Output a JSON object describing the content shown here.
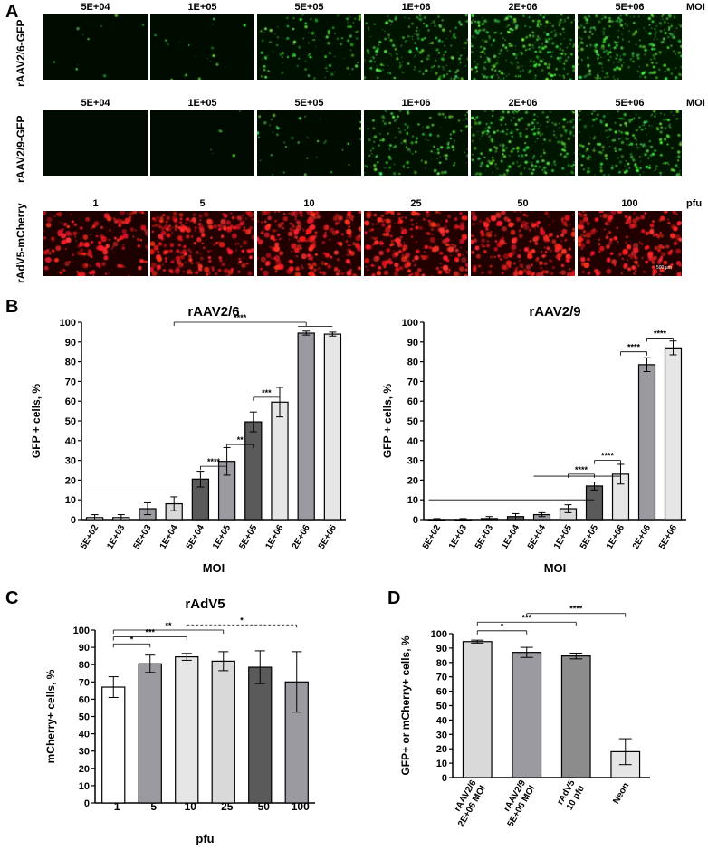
{
  "panels": {
    "A": "A",
    "B": "B",
    "C": "C",
    "D": "D"
  },
  "micrographs": {
    "rows": [
      {
        "label": "rAAV2/6-GFP",
        "unit": "MOI",
        "color": "#22cc22",
        "tiles": [
          {
            "label": "5E+04",
            "intensity": 0.03
          },
          {
            "label": "1E+05",
            "intensity": 0.06
          },
          {
            "label": "5E+05",
            "intensity": 0.35
          },
          {
            "label": "1E+06",
            "intensity": 0.6
          },
          {
            "label": "2E+06",
            "intensity": 0.9
          },
          {
            "label": "5E+06",
            "intensity": 0.85
          }
        ]
      },
      {
        "label": "rAAV2/9-GFP",
        "unit": "MOI",
        "color": "#22cc22",
        "tiles": [
          {
            "label": "5E+04",
            "intensity": 0.0
          },
          {
            "label": "1E+05",
            "intensity": 0.02
          },
          {
            "label": "5E+05",
            "intensity": 0.12
          },
          {
            "label": "1E+06",
            "intensity": 0.45
          },
          {
            "label": "2E+06",
            "intensity": 0.75
          },
          {
            "label": "5E+06",
            "intensity": 0.7
          }
        ]
      },
      {
        "label": "rAdV5-mCherry",
        "unit": "pfu",
        "color": "#ff1a1a",
        "tiles": [
          {
            "label": "1",
            "intensity": 0.6
          },
          {
            "label": "5",
            "intensity": 0.85
          },
          {
            "label": "10",
            "intensity": 0.8
          },
          {
            "label": "25",
            "intensity": 0.8
          },
          {
            "label": "50",
            "intensity": 0.75
          },
          {
            "label": "100",
            "intensity": 0.7
          }
        ]
      }
    ],
    "scale_bar": "500 µm"
  },
  "chart_data": [
    {
      "id": "B1",
      "type": "bar",
      "title": "rAAV2/6",
      "xlabel": "MOI",
      "ylabel": "GFP + cells, %",
      "ylim": [
        0,
        100
      ],
      "yticks": [
        0,
        10,
        20,
        30,
        40,
        50,
        60,
        70,
        80,
        90,
        100
      ],
      "categories": [
        "5E+02",
        "1E+03",
        "5E+03",
        "1E+04",
        "5E+04",
        "1E+05",
        "5E+05",
        "1E+06",
        "2E+06",
        "5E+06"
      ],
      "values": [
        1,
        1,
        5.5,
        8,
        20.5,
        29.5,
        49.5,
        59.5,
        94.5,
        94
      ],
      "errors": [
        1.5,
        1.5,
        3,
        3.5,
        4,
        7,
        5,
        7.5,
        1,
        1
      ],
      "fills": [
        "#ffffff",
        "#ffffff",
        "#9a9aa0",
        "#d9d9d9",
        "#5a5a5a",
        "#9a9aa0",
        "#5a5a5a",
        "#e6e6e6",
        "#9a9aa0",
        "#e6e6e6"
      ],
      "significance": [
        {
          "label": "****",
          "from": 4,
          "to": 5
        },
        {
          "label": "***",
          "from": 6,
          "to": 7
        },
        {
          "label": "**",
          "from": 5,
          "to": 6
        },
        {
          "label": "****",
          "from": 3,
          "to": 8
        }
      ]
    },
    {
      "id": "B2",
      "type": "bar",
      "title": "rAAV2/9",
      "xlabel": "MOI",
      "ylabel": "GFP + cells, %",
      "ylim": [
        0,
        100
      ],
      "yticks": [
        0,
        10,
        20,
        30,
        40,
        50,
        60,
        70,
        80,
        90,
        100
      ],
      "categories": [
        "5E+02",
        "1E+03",
        "5E+03",
        "1E+04",
        "5E+04",
        "1E+05",
        "5E+05",
        "1E+06",
        "2E+06",
        "5E+06"
      ],
      "values": [
        0,
        0,
        0.5,
        1.5,
        2.5,
        5.5,
        17,
        23,
        78.5,
        87
      ],
      "errors": [
        0.5,
        0.5,
        1,
        1.5,
        1,
        2,
        2,
        5,
        3.5,
        3.5
      ],
      "fills": [
        "#ffffff",
        "#ffffff",
        "#ffffff",
        "#5a5a5a",
        "#9a9aa0",
        "#d9d9d9",
        "#5a5a5a",
        "#e6e6e6",
        "#9a9aa0",
        "#e6e6e6"
      ],
      "significance": [
        {
          "label": "****",
          "from": 5,
          "to": 6
        },
        {
          "label": "****",
          "from": 6,
          "to": 7
        },
        {
          "label": "****",
          "from": 7,
          "to": 8
        },
        {
          "label": "****",
          "from": 8,
          "to": 9
        }
      ]
    },
    {
      "id": "C",
      "type": "bar",
      "title": "rAdV5",
      "xlabel": "pfu",
      "ylabel": "mCherry+ cells, %",
      "ylim": [
        0,
        100
      ],
      "yticks": [
        0,
        10,
        20,
        30,
        40,
        50,
        60,
        70,
        80,
        90,
        100
      ],
      "categories": [
        "1",
        "5",
        "10",
        "25",
        "50",
        "100"
      ],
      "values": [
        67,
        80.5,
        84.5,
        82,
        78.5,
        70
      ],
      "errors": [
        6,
        5,
        2,
        5.5,
        9.5,
        17.5
      ],
      "fills": [
        "#ffffff",
        "#9a9aa0",
        "#e6e6e6",
        "#d9d9d9",
        "#5a5a5a",
        "#9a9aa0"
      ],
      "significance": [
        {
          "label": "*",
          "from": 0,
          "to": 1,
          "y": 92
        },
        {
          "label": "***",
          "from": 0,
          "to": 2,
          "y": 96
        },
        {
          "label": "**",
          "from": 0,
          "to": 3,
          "y": 100
        },
        {
          "label": "*",
          "from": 2,
          "to": 5,
          "y": 100,
          "dashed": true
        }
      ]
    },
    {
      "id": "D",
      "type": "bar",
      "title": "",
      "xlabel": "",
      "ylabel": "GFP+ or mCherry+ cells,  %",
      "ylim": [
        0,
        100
      ],
      "yticks": [
        0,
        10,
        20,
        30,
        40,
        50,
        60,
        70,
        80,
        90,
        100
      ],
      "categories": [
        "rAAV2/6\n2E+06 MOI",
        "rAAV2/9\n5E+06 MOI",
        "rAdV5\n10 pfu",
        "Neon"
      ],
      "values": [
        94.5,
        87,
        84.5,
        18
      ],
      "errors": [
        1,
        3.5,
        2,
        9
      ],
      "fills": [
        "#d9d9d9",
        "#9a9aa0",
        "#8c8c8c",
        "#e6e6e6"
      ],
      "significance": [
        {
          "label": "*",
          "from": 0,
          "to": 1,
          "y": 102
        },
        {
          "label": "***",
          "from": 0,
          "to": 2,
          "y": 108
        },
        {
          "label": "****",
          "from": 1,
          "to": 3,
          "y": 114
        }
      ]
    }
  ]
}
